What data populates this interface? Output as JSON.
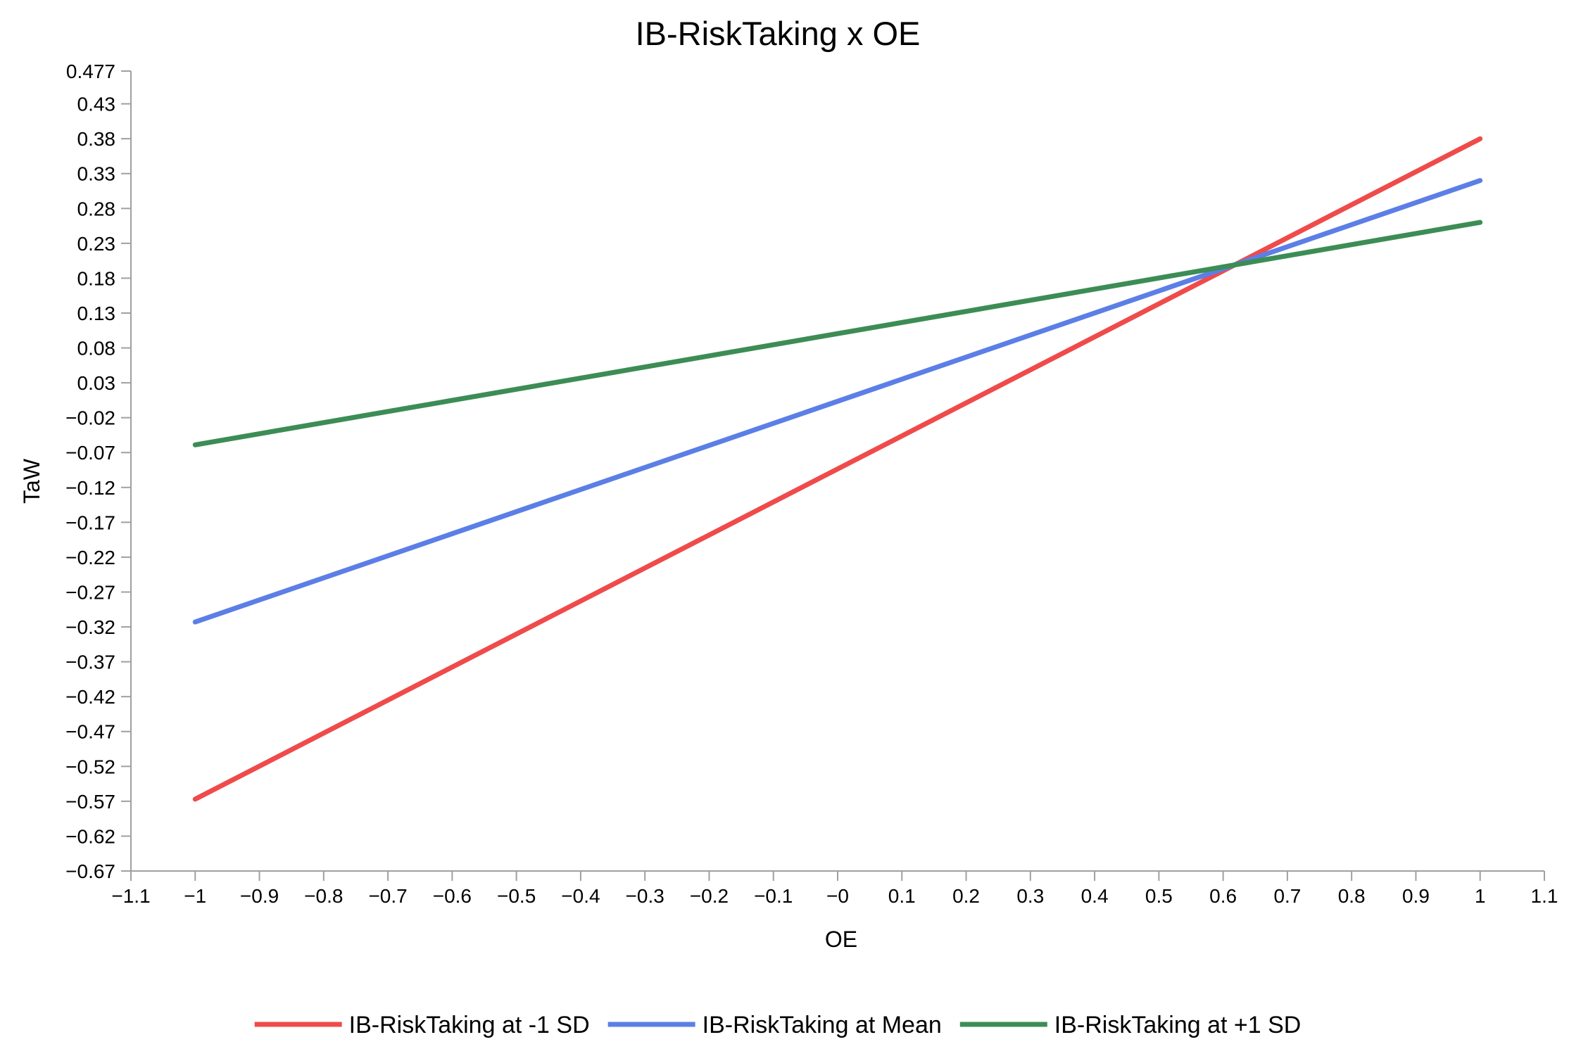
{
  "chart_data": {
    "type": "line",
    "title": "IB-RiskTaking x OE",
    "xlabel": "OE",
    "ylabel": "TaW",
    "xlim": [
      -1.1,
      1.1
    ],
    "ylim": [
      -0.67,
      0.477
    ],
    "x_ticks": [
      "−1.1",
      "−1",
      "−0.9",
      "−0.8",
      "−0.7",
      "−0.6",
      "−0.5",
      "−0.4",
      "−0.3",
      "−0.2",
      "−0.1",
      "−0",
      "0.1",
      "0.2",
      "0.3",
      "0.4",
      "0.5",
      "0.6",
      "0.7",
      "0.8",
      "0.9",
      "1",
      "1.1"
    ],
    "x_tick_values": [
      -1.1,
      -1,
      -0.9,
      -0.8,
      -0.7,
      -0.6,
      -0.5,
      -0.4,
      -0.3,
      -0.2,
      -0.1,
      0,
      0.1,
      0.2,
      0.3,
      0.4,
      0.5,
      0.6,
      0.7,
      0.8,
      0.9,
      1,
      1.1
    ],
    "y_ticks": [
      "0.477",
      "0.43",
      "0.38",
      "0.33",
      "0.28",
      "0.23",
      "0.18",
      "0.13",
      "0.08",
      "0.03",
      "−0.02",
      "−0.07",
      "−0.12",
      "−0.17",
      "−0.22",
      "−0.27",
      "−0.32",
      "−0.37",
      "−0.42",
      "−0.47",
      "−0.52",
      "−0.57",
      "−0.62",
      "−0.67"
    ],
    "y_tick_values": [
      0.477,
      0.43,
      0.38,
      0.33,
      0.28,
      0.23,
      0.18,
      0.13,
      0.08,
      0.03,
      -0.02,
      -0.07,
      -0.12,
      -0.17,
      -0.22,
      -0.27,
      -0.32,
      -0.37,
      -0.42,
      -0.47,
      -0.52,
      -0.57,
      -0.62,
      -0.67
    ],
    "grid": false,
    "legend_position": "bottom",
    "series": [
      {
        "name": "IB-RiskTaking at -1 SD",
        "color": "#ef4b4b",
        "x": [
          -1,
          1
        ],
        "y": [
          -0.567,
          0.38
        ]
      },
      {
        "name": "IB-RiskTaking at Mean",
        "color": "#5b7fe6",
        "x": [
          -1,
          1
        ],
        "y": [
          -0.313,
          0.32
        ]
      },
      {
        "name": "IB-RiskTaking at +1 SD",
        "color": "#3c8d55",
        "x": [
          -1,
          1
        ],
        "y": [
          -0.059,
          0.26
        ]
      }
    ]
  }
}
